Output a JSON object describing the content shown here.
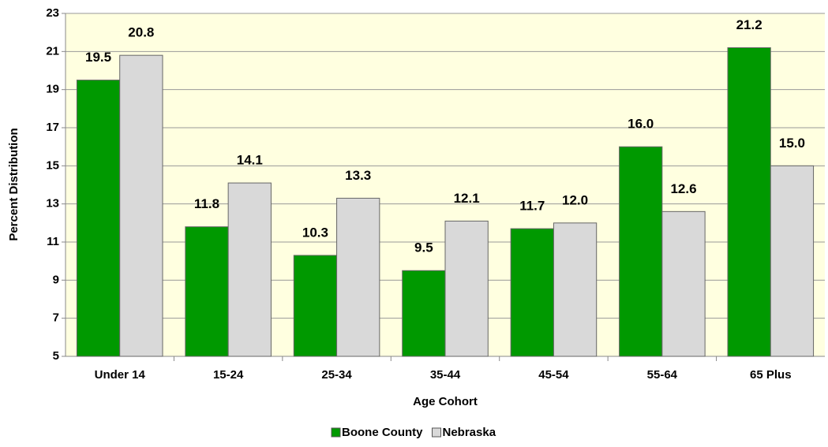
{
  "chart_data": {
    "type": "bar",
    "x_label": "Age Cohort",
    "y_label": "Percent Distribution",
    "categories": [
      "Under 14",
      "15-24",
      "25-34",
      "35-44",
      "45-54",
      "55-64",
      "65 Plus"
    ],
    "series": [
      {
        "name": "Boone County",
        "color": "#009900",
        "values": [
          19.5,
          11.8,
          10.3,
          9.5,
          11.7,
          16.0,
          21.2
        ],
        "value_labels": [
          "19.5",
          "11.8",
          "10.3",
          "9.5",
          "11.7",
          "16.0",
          "21.2"
        ]
      },
      {
        "name": "Nebraska",
        "color": "#d9d9d9",
        "values": [
          20.8,
          14.1,
          13.3,
          12.1,
          12.0,
          12.6,
          15.0
        ],
        "value_labels": [
          "20.8",
          "14.1",
          "13.3",
          "12.1",
          "12.0",
          "12.6",
          "15.0"
        ]
      }
    ],
    "ylim": [
      5,
      23
    ],
    "yticks": [
      5,
      7,
      9,
      11,
      13,
      15,
      17,
      19,
      21,
      23
    ],
    "grid": true,
    "legend": "bottom"
  }
}
